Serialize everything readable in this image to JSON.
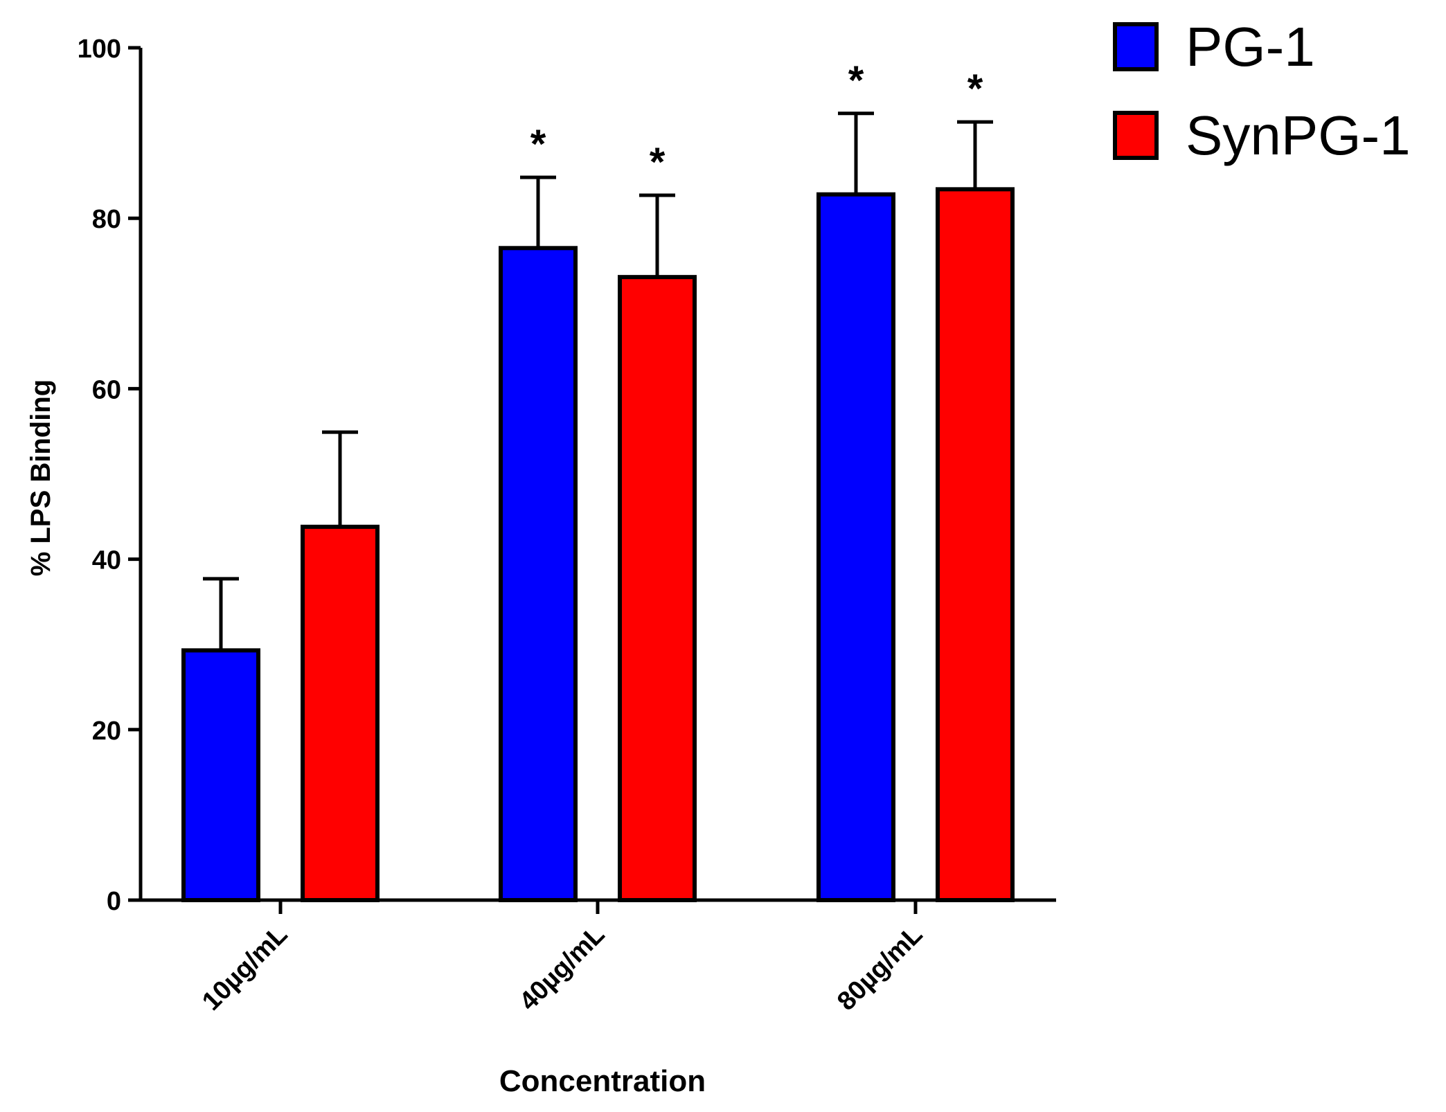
{
  "chart_data": {
    "type": "bar",
    "title": "",
    "xlabel": "Concentration",
    "ylabel": "% LPS Binding",
    "categories": [
      "10µg/mL",
      "40µg/mL",
      "80µg/mL"
    ],
    "ylim": [
      0,
      100
    ],
    "yticks": [
      0,
      20,
      40,
      60,
      80,
      100
    ],
    "ytick_labels": [
      "0",
      "20",
      "40",
      "60",
      "80",
      "100"
    ],
    "grid": false,
    "legend_position": "top-right",
    "series": [
      {
        "name": "PG-1",
        "color": "#0000ff",
        "values": [
          29.3,
          76.5,
          82.8
        ],
        "errors": [
          8.4,
          8.3,
          9.5
        ],
        "significance": [
          "",
          "*",
          "*"
        ]
      },
      {
        "name": "SynPG-1",
        "color": "#ff0000",
        "values": [
          43.8,
          73.1,
          83.4
        ],
        "errors": [
          11.1,
          9.6,
          7.9
        ],
        "significance": [
          "",
          "*",
          "*"
        ]
      }
    ]
  }
}
